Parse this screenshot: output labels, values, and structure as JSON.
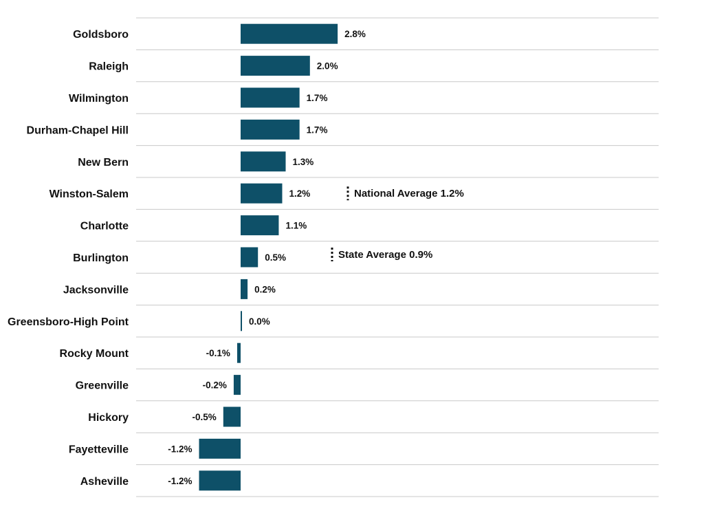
{
  "chart_data": {
    "type": "bar",
    "orientation": "horizontal",
    "title": "",
    "xlabel": "",
    "ylabel": "",
    "categories": [
      "Goldsboro",
      "Raleigh",
      "Wilmington",
      "Durham-Chapel Hill",
      "New Bern",
      "Winston-Salem",
      "Charlotte",
      "Burlington",
      "Jacksonville",
      "Greensboro-High Point",
      "Rocky Mount",
      "Greenville",
      "Hickory",
      "Fayetteville",
      "Asheville"
    ],
    "values": [
      2.8,
      2.0,
      1.7,
      1.7,
      1.3,
      1.2,
      1.1,
      0.5,
      0.2,
      0.0,
      -0.1,
      -0.2,
      -0.5,
      -1.2,
      -1.2
    ],
    "value_labels": [
      "2.8%",
      "2.0%",
      "1.7%",
      "1.7%",
      "1.3%",
      "1.2%",
      "1.1%",
      "0.5%",
      "0.2%",
      "0.0%",
      "-0.1%",
      "-0.2%",
      "-0.5%",
      "-1.2%",
      "-1.2%"
    ],
    "bar_color": "#0e5068",
    "grid": "horizontal",
    "legend": "none",
    "annotations": [
      {
        "label": "National Average 1.2%",
        "category": "Winston-Salem"
      },
      {
        "label": "State Average 0.9%",
        "category": "Burlington"
      }
    ]
  }
}
